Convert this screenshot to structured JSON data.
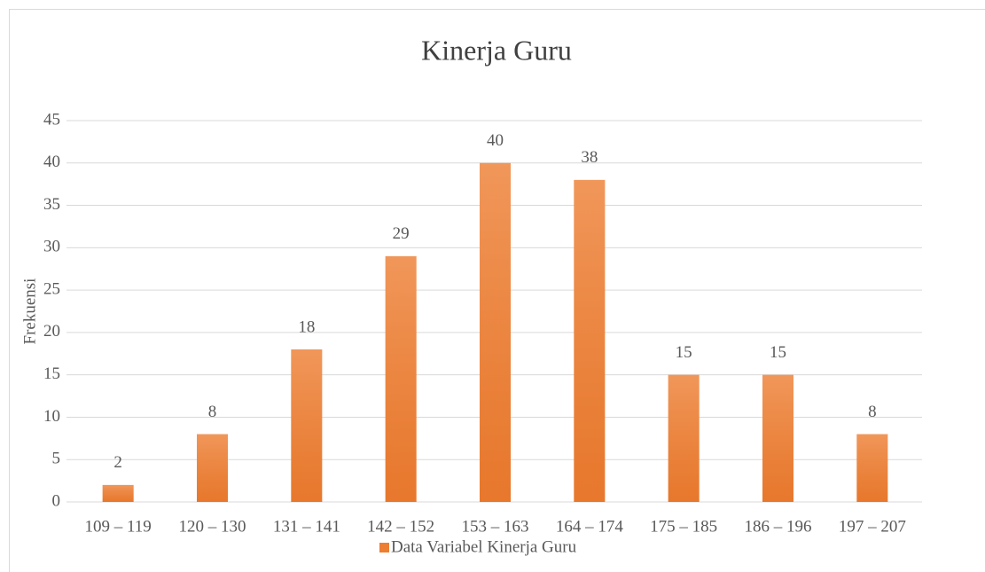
{
  "chart_data": {
    "type": "bar",
    "title": "Kinerja Guru",
    "y_label": "Frekuensi",
    "categories": [
      "109 – 119",
      "120 – 130",
      "131 – 141",
      "142 – 152",
      "153 – 163",
      "164 – 174",
      "175 – 185",
      "186 – 196",
      "197 – 207"
    ],
    "series": [
      {
        "name": "Data Variabel Kinerja Guru",
        "color": "#ed7d31",
        "values": [
          2,
          8,
          18,
          29,
          40,
          38,
          15,
          15,
          8
        ]
      }
    ],
    "ylim": [
      0,
      45
    ],
    "yticks": [
      0,
      5,
      10,
      15,
      20,
      25,
      30,
      35,
      40,
      45
    ],
    "grid": true,
    "legend": "bottom"
  }
}
